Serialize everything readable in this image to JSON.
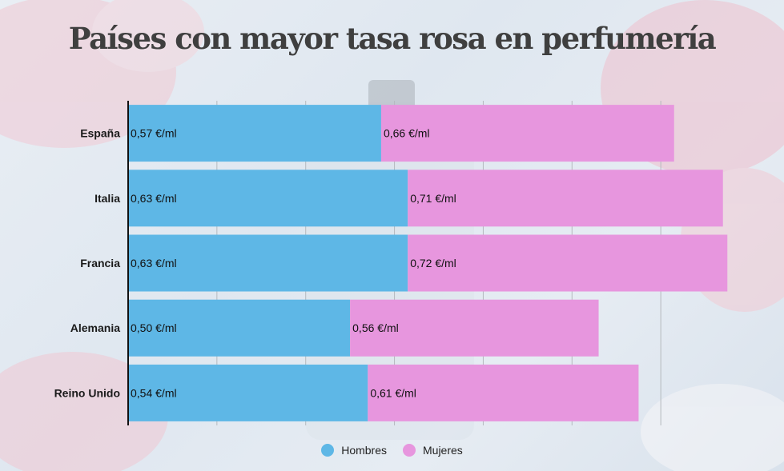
{
  "title": "Países con mayor tasa rosa en perfumería",
  "colors": {
    "hombres": "#5eb7e6",
    "mujeres": "#e796de",
    "axis": "#111111",
    "grid": "#b5b9be"
  },
  "chart_data": {
    "type": "bar",
    "orientation": "horizontal",
    "stacked": true,
    "categories": [
      "España",
      "Italia",
      "Francia",
      "Alemania",
      "Reino Unido"
    ],
    "series": [
      {
        "name": "Hombres",
        "values": [
          0.57,
          0.63,
          0.63,
          0.5,
          0.54
        ],
        "labels": [
          "0,57 €/ml",
          "0,63 €/ml",
          "0,63 €/ml",
          "0,50 €/ml",
          "0,54 €/ml"
        ]
      },
      {
        "name": "Mujeres",
        "values": [
          0.66,
          0.71,
          0.72,
          0.56,
          0.61
        ],
        "labels": [
          "0,66 €/ml",
          "0,71 €/ml",
          "0,72 €/ml",
          "0,56 €/ml",
          "0,61 €/ml"
        ]
      }
    ],
    "xlim": [
      0,
      1.4
    ],
    "grid": true,
    "legend_position": "bottom-center"
  },
  "legend": {
    "items": [
      "Hombres",
      "Mujeres"
    ]
  }
}
